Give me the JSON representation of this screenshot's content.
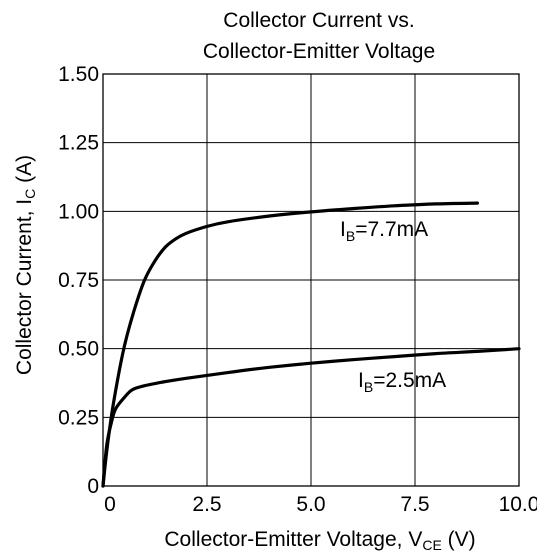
{
  "chart_data": {
    "type": "line",
    "title_lines": [
      "Collector Current vs.",
      "Collector-Emitter Voltage"
    ],
    "xlabel": {
      "main": "Collector-Emitter Voltage, V",
      "sub": "CE",
      "unit": " (V)"
    },
    "ylabel": {
      "main": "Collector Current, I",
      "sub": "C",
      "unit": " (A)"
    },
    "xlim": [
      0,
      10
    ],
    "ylim": [
      0,
      1.5
    ],
    "x_ticks": [
      0,
      2.5,
      5,
      7.5,
      10
    ],
    "x_tick_labels": [
      "0",
      "2.5",
      "5.0",
      "7.5",
      "10.0"
    ],
    "y_ticks": [
      0,
      0.25,
      0.5,
      0.75,
      1.0,
      1.25,
      1.5
    ],
    "y_tick_labels": [
      "0",
      "0.25",
      "0.50",
      "0.75",
      "1.00",
      "1.25",
      "1.50"
    ],
    "grid": true,
    "series": [
      {
        "label": {
          "main": "I",
          "sub": "B",
          "rest": "=7.7mA"
        },
        "x": [
          0,
          0.1,
          0.25,
          0.5,
          0.75,
          1.0,
          1.25,
          1.5,
          1.75,
          2.0,
          2.5,
          3.0,
          4.0,
          5.0,
          6.0,
          7.0,
          8.0,
          9.0
        ],
        "y": [
          0,
          0.14,
          0.3,
          0.5,
          0.64,
          0.75,
          0.82,
          0.87,
          0.9,
          0.92,
          0.945,
          0.962,
          0.983,
          0.998,
          1.01,
          1.02,
          1.027,
          1.03
        ]
      },
      {
        "label": {
          "main": "I",
          "sub": "B",
          "rest": "=2.5mA"
        },
        "x": [
          0,
          0.05,
          0.1,
          0.2,
          0.3,
          0.5,
          0.7,
          1.0,
          1.5,
          2.0,
          3.0,
          4.0,
          5.0,
          6.0,
          7.0,
          8.0,
          9.0,
          10.0
        ],
        "y": [
          0,
          0.09,
          0.16,
          0.23,
          0.28,
          0.32,
          0.35,
          0.365,
          0.38,
          0.392,
          0.413,
          0.432,
          0.447,
          0.46,
          0.471,
          0.482,
          0.49,
          0.5
        ]
      }
    ],
    "line_color": "#000000",
    "grid_color": "#000000"
  }
}
